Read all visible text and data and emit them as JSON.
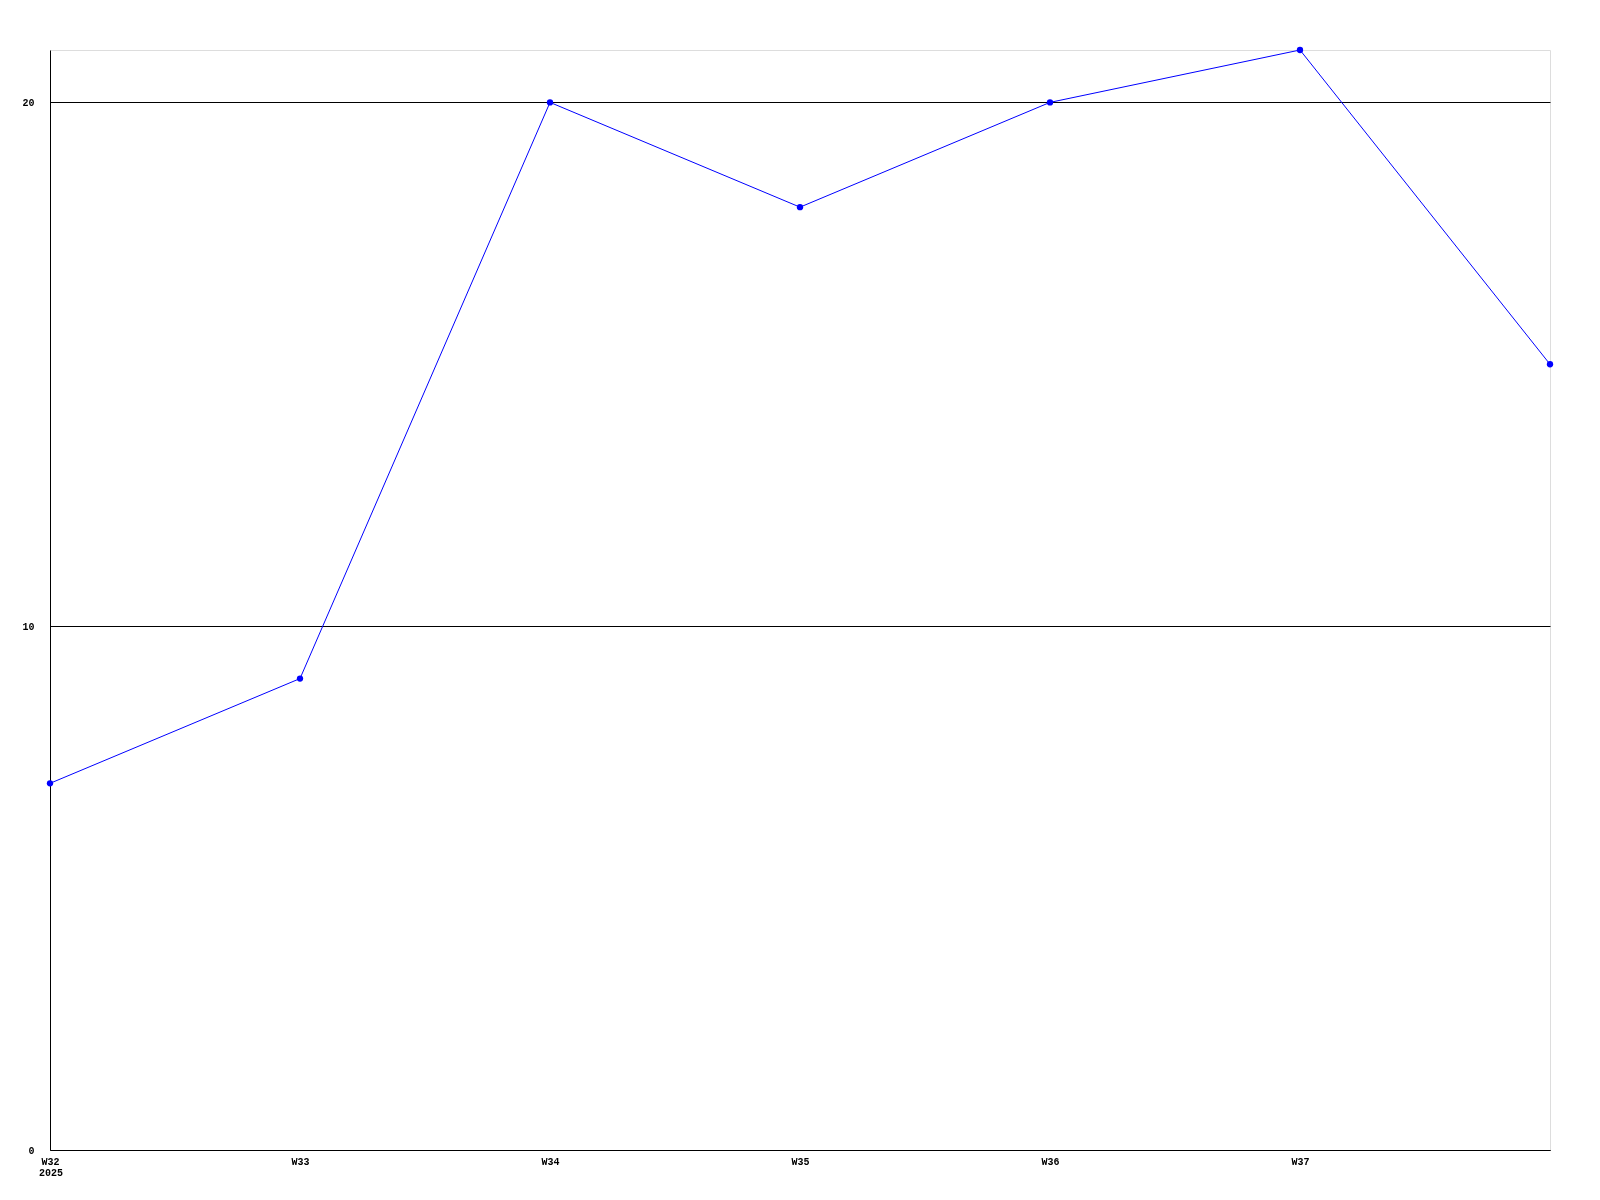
{
  "chart_data": {
    "type": "line",
    "categories": [
      "W32",
      "W33",
      "W34",
      "W35",
      "W36",
      "W37",
      null
    ],
    "series": [
      {
        "color": "#0000ff",
        "values": [
          7,
          9,
          20,
          18,
          20,
          21,
          15
        ]
      }
    ],
    "ylim": [
      0,
      21
    ],
    "yticks": [
      0,
      10,
      20
    ],
    "grid": "y",
    "marker": "circle",
    "line_style": "solid",
    "annotations": [
      "2025"
    ]
  }
}
